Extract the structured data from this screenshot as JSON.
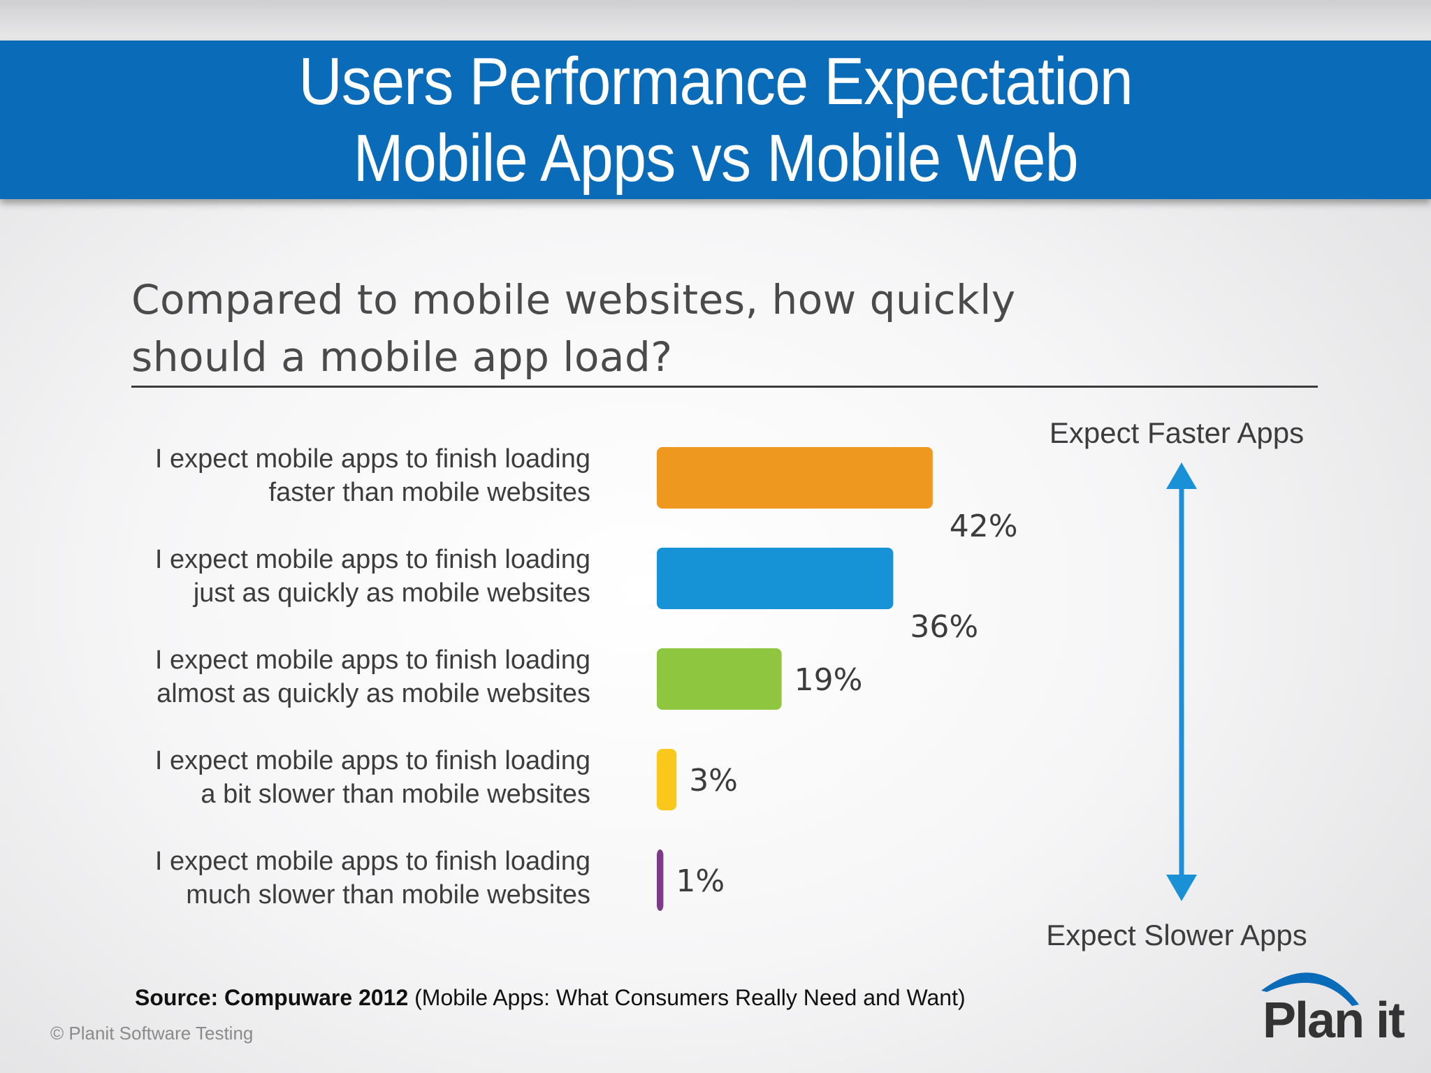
{
  "slide": {
    "title_line1": "Users Performance Expectation",
    "title_line2": "Mobile Apps vs Mobile Web",
    "question_line1": "Compared to mobile websites, how quickly",
    "question_line2": "should a mobile app load?",
    "source_bold": "Source: Compuware 2012",
    "source_rest": "(Mobile Apps: What Consumers Really Need and Want)",
    "copyright": "© Planit Software Testing",
    "logo_text": "Plan it",
    "colors": {
      "title_bar": "#0a6cb8",
      "arrow": "#1a90d6"
    }
  },
  "chart_data": {
    "type": "bar",
    "orientation": "horizontal",
    "categories": [
      [
        "I expect mobile apps to finish loading",
        "faster than mobile websites"
      ],
      [
        "I expect mobile apps to finish loading",
        "just as quickly as mobile websites"
      ],
      [
        "I expect mobile apps to finish loading",
        "almost as quickly as mobile websites"
      ],
      [
        "I expect mobile apps to finish loading",
        "a bit slower than mobile websites"
      ],
      [
        "I expect mobile apps to finish loading",
        "much slower than mobile websites"
      ]
    ],
    "values": [
      42,
      36,
      19,
      3,
      1
    ],
    "value_labels": [
      "42%",
      "36%",
      "19%",
      "3%",
      "1%"
    ],
    "colors": [
      "#ee981f",
      "#1593d6",
      "#8ec63f",
      "#f9c81a",
      "#7c3b8a"
    ],
    "annotations": {
      "top": "Expect Faster Apps",
      "bottom": "Expect Slower Apps"
    }
  }
}
